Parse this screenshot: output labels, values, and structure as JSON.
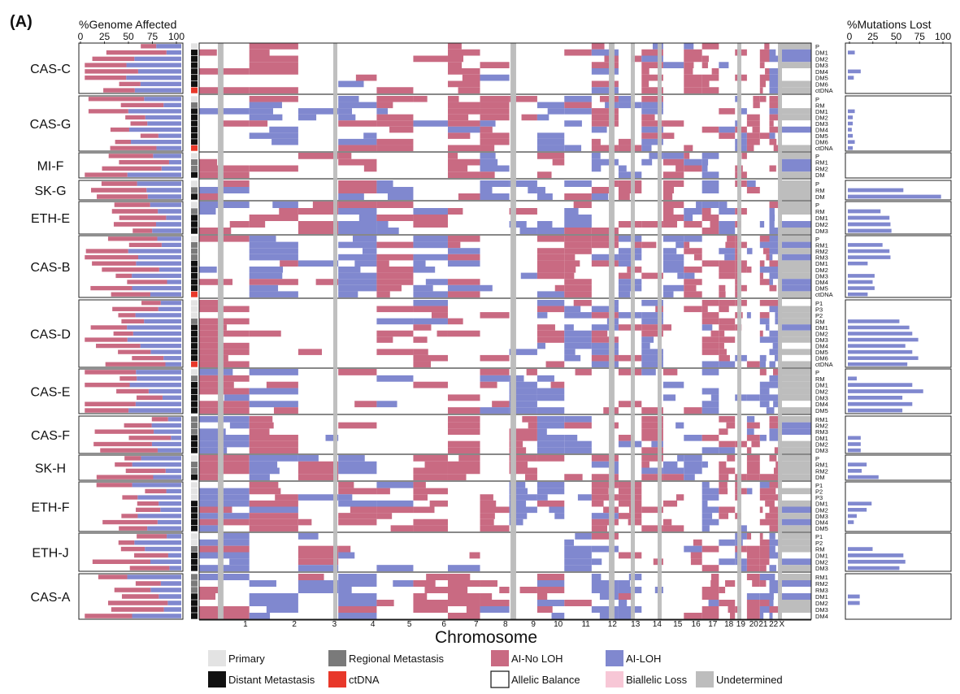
{
  "panel_label": "(A)",
  "genome_axis": {
    "title": "%Genome Affected",
    "ticks": [
      "0",
      "25",
      "50",
      "75",
      "100"
    ]
  },
  "mutation_axis": {
    "title": "%Mutations Lost",
    "ticks": [
      "0",
      "25",
      "50",
      "75",
      "100"
    ]
  },
  "x_axis_title": "Chromosome",
  "chromosomes": [
    "1",
    "2",
    "3",
    "4",
    "5",
    "6",
    "7",
    "8",
    "9",
    "10",
    "11",
    "12",
    "13",
    "14",
    "15",
    "16",
    "17",
    "18",
    "19",
    "20",
    "21",
    "22",
    "X"
  ],
  "colors": {
    "primary": "#e3e3e3",
    "regional": "#7a7a7a",
    "distant": "#111111",
    "ctdna": "#e8382a",
    "ai_noloh": "#c96a82",
    "ai_loh": "#8088cf",
    "balance": "#ffffff",
    "biallelic": "#f7c7d6",
    "undetermined": "#bdbdbd"
  },
  "legend": [
    {
      "key": "primary",
      "label": "Primary"
    },
    {
      "key": "regional",
      "label": "Regional Metastasis"
    },
    {
      "key": "ai_noloh",
      "label": "AI-No LOH"
    },
    {
      "key": "ai_loh",
      "label": "AI-LOH"
    },
    {
      "key": "distant",
      "label": "Distant Metastasis"
    },
    {
      "key": "ctdna",
      "label": "ctDNA"
    },
    {
      "key": "balance",
      "label": "Allelic Balance"
    },
    {
      "key": "biallelic",
      "label": "Biallelic Loss"
    },
    {
      "key": "undetermined",
      "label": "Undetermined"
    }
  ],
  "patients": [
    {
      "name": "CAS-C",
      "samples": [
        {
          "label": "P",
          "type": "primary",
          "mutations_lost": 0
        },
        {
          "label": "DM1",
          "type": "distant",
          "mutations_lost": 7
        },
        {
          "label": "DM2",
          "type": "distant",
          "mutations_lost": 0
        },
        {
          "label": "DM3",
          "type": "distant",
          "mutations_lost": 0
        },
        {
          "label": "DM4",
          "type": "distant",
          "mutations_lost": 13
        },
        {
          "label": "DM5",
          "type": "distant",
          "mutations_lost": 6
        },
        {
          "label": "DM6",
          "type": "distant",
          "mutations_lost": 0
        },
        {
          "label": "ctDNA",
          "type": "ctdna",
          "mutations_lost": 0
        }
      ]
    },
    {
      "name": "CAS-G",
      "samples": [
        {
          "label": "P",
          "type": "primary",
          "mutations_lost": 0
        },
        {
          "label": "RM",
          "type": "regional",
          "mutations_lost": 0
        },
        {
          "label": "DM1",
          "type": "distant",
          "mutations_lost": 7
        },
        {
          "label": "DM2",
          "type": "distant",
          "mutations_lost": 5
        },
        {
          "label": "DM3",
          "type": "distant",
          "mutations_lost": 5
        },
        {
          "label": "DM4",
          "type": "distant",
          "mutations_lost": 4
        },
        {
          "label": "DM5",
          "type": "distant",
          "mutations_lost": 5
        },
        {
          "label": "DM6",
          "type": "distant",
          "mutations_lost": 7
        },
        {
          "label": "ctDNA",
          "type": "ctdna",
          "mutations_lost": 5
        }
      ]
    },
    {
      "name": "MI-F",
      "samples": [
        {
          "label": "P",
          "type": "primary",
          "mutations_lost": 0
        },
        {
          "label": "RM1",
          "type": "regional",
          "mutations_lost": 0
        },
        {
          "label": "RM2",
          "type": "regional",
          "mutations_lost": 0
        },
        {
          "label": "DM",
          "type": "distant",
          "mutations_lost": 0
        }
      ]
    },
    {
      "name": "SK-G",
      "samples": [
        {
          "label": "P",
          "type": "primary",
          "mutations_lost": 0
        },
        {
          "label": "RM",
          "type": "regional",
          "mutations_lost": 56
        },
        {
          "label": "DM",
          "type": "distant",
          "mutations_lost": 94
        }
      ]
    },
    {
      "name": "ETH-E",
      "samples": [
        {
          "label": "P",
          "type": "primary",
          "mutations_lost": 0
        },
        {
          "label": "RM",
          "type": "regional",
          "mutations_lost": 33
        },
        {
          "label": "DM1",
          "type": "distant",
          "mutations_lost": 42
        },
        {
          "label": "DM2",
          "type": "distant",
          "mutations_lost": 43
        },
        {
          "label": "DM3",
          "type": "distant",
          "mutations_lost": 44
        }
      ]
    },
    {
      "name": "CAS-B",
      "samples": [
        {
          "label": "P",
          "type": "primary",
          "mutations_lost": 0
        },
        {
          "label": "RM1",
          "type": "regional",
          "mutations_lost": 35
        },
        {
          "label": "RM2",
          "type": "regional",
          "mutations_lost": 42
        },
        {
          "label": "RM3",
          "type": "regional",
          "mutations_lost": 43
        },
        {
          "label": "DM1",
          "type": "distant",
          "mutations_lost": 20
        },
        {
          "label": "DM2",
          "type": "distant",
          "mutations_lost": 0
        },
        {
          "label": "DM3",
          "type": "distant",
          "mutations_lost": 27
        },
        {
          "label": "DM4",
          "type": "distant",
          "mutations_lost": 25
        },
        {
          "label": "DM5",
          "type": "distant",
          "mutations_lost": 27
        },
        {
          "label": "ctDNA",
          "type": "ctdna",
          "mutations_lost": 20
        }
      ]
    },
    {
      "name": "CAS-D",
      "samples": [
        {
          "label": "P1",
          "type": "primary",
          "mutations_lost": 0
        },
        {
          "label": "P3",
          "type": "primary",
          "mutations_lost": 0
        },
        {
          "label": "P2",
          "type": "primary",
          "mutations_lost": 0
        },
        {
          "label": "RM",
          "type": "regional",
          "mutations_lost": 52
        },
        {
          "label": "DM1",
          "type": "distant",
          "mutations_lost": 62
        },
        {
          "label": "DM2",
          "type": "distant",
          "mutations_lost": 65
        },
        {
          "label": "DM3",
          "type": "distant",
          "mutations_lost": 71
        },
        {
          "label": "DM4",
          "type": "distant",
          "mutations_lost": 58
        },
        {
          "label": "DM5",
          "type": "distant",
          "mutations_lost": 65
        },
        {
          "label": "DM6",
          "type": "distant",
          "mutations_lost": 71
        },
        {
          "label": "ctDNA",
          "type": "ctdna",
          "mutations_lost": 60
        }
      ]
    },
    {
      "name": "CAS-E",
      "samples": [
        {
          "label": "P",
          "type": "primary",
          "mutations_lost": 0
        },
        {
          "label": "RM",
          "type": "regional",
          "mutations_lost": 9
        },
        {
          "label": "DM1",
          "type": "distant",
          "mutations_lost": 65
        },
        {
          "label": "DM2",
          "type": "distant",
          "mutations_lost": 76
        },
        {
          "label": "DM3",
          "type": "distant",
          "mutations_lost": 55
        },
        {
          "label": "DM4",
          "type": "distant",
          "mutations_lost": 65
        },
        {
          "label": "DM5",
          "type": "distant",
          "mutations_lost": 55
        }
      ]
    },
    {
      "name": "CAS-F",
      "samples": [
        {
          "label": "RM1",
          "type": "regional",
          "mutations_lost": 0
        },
        {
          "label": "RM2",
          "type": "regional",
          "mutations_lost": 0
        },
        {
          "label": "RM3",
          "type": "regional",
          "mutations_lost": 0
        },
        {
          "label": "DM1",
          "type": "distant",
          "mutations_lost": 13
        },
        {
          "label": "DM2",
          "type": "distant",
          "mutations_lost": 13
        },
        {
          "label": "DM3",
          "type": "distant",
          "mutations_lost": 13
        }
      ]
    },
    {
      "name": "SK-H",
      "samples": [
        {
          "label": "P",
          "type": "primary",
          "mutations_lost": 0
        },
        {
          "label": "RM1",
          "type": "regional",
          "mutations_lost": 19
        },
        {
          "label": "RM2",
          "type": "regional",
          "mutations_lost": 14
        },
        {
          "label": "DM",
          "type": "distant",
          "mutations_lost": 31
        }
      ]
    },
    {
      "name": "ETH-F",
      "samples": [
        {
          "label": "P1",
          "type": "primary",
          "mutations_lost": 0
        },
        {
          "label": "P2",
          "type": "primary",
          "mutations_lost": 0
        },
        {
          "label": "P3",
          "type": "primary",
          "mutations_lost": 0
        },
        {
          "label": "DM1",
          "type": "distant",
          "mutations_lost": 24
        },
        {
          "label": "DM2",
          "type": "distant",
          "mutations_lost": 19
        },
        {
          "label": "DM3",
          "type": "distant",
          "mutations_lost": 9
        },
        {
          "label": "DM4",
          "type": "distant",
          "mutations_lost": 6
        },
        {
          "label": "DM5",
          "type": "distant",
          "mutations_lost": 0
        }
      ]
    },
    {
      "name": "ETH-J",
      "samples": [
        {
          "label": "P1",
          "type": "primary",
          "mutations_lost": 0
        },
        {
          "label": "P2",
          "type": "primary",
          "mutations_lost": 0
        },
        {
          "label": "RM",
          "type": "regional",
          "mutations_lost": 25
        },
        {
          "label": "DM1",
          "type": "distant",
          "mutations_lost": 56
        },
        {
          "label": "DM2",
          "type": "distant",
          "mutations_lost": 58
        },
        {
          "label": "DM3",
          "type": "distant",
          "mutations_lost": 52
        }
      ]
    },
    {
      "name": "CAS-A",
      "samples": [
        {
          "label": "RM1",
          "type": "regional",
          "mutations_lost": 0
        },
        {
          "label": "RM2",
          "type": "regional",
          "mutations_lost": 0
        },
        {
          "label": "RM3",
          "type": "regional",
          "mutations_lost": 0
        },
        {
          "label": "DM1",
          "type": "distant",
          "mutations_lost": 12
        },
        {
          "label": "DM2",
          "type": "distant",
          "mutations_lost": 12
        },
        {
          "label": "DM3",
          "type": "distant",
          "mutations_lost": 0
        },
        {
          "label": "DM4",
          "type": "distant",
          "mutations_lost": 0
        }
      ]
    }
  ]
}
